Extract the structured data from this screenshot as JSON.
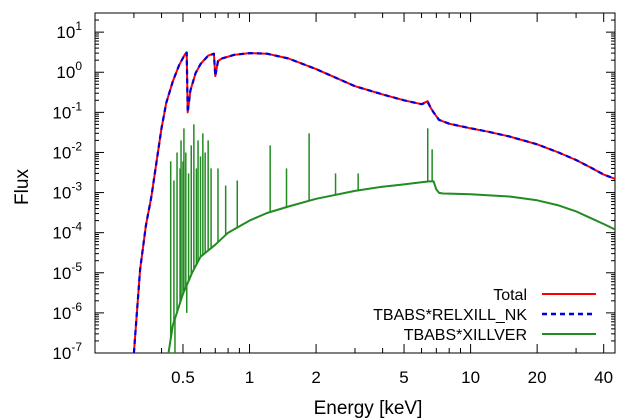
{
  "chart_data": {
    "type": "line",
    "xlabel": "Energy [keV]",
    "ylabel": "Flux",
    "xscale": "log",
    "yscale": "log",
    "xlim": [
      0.2,
      45
    ],
    "ylim": [
      1e-07,
      30
    ],
    "xticks": [
      {
        "value": 0.5,
        "label": "0.5"
      },
      {
        "value": 1,
        "label": "1"
      },
      {
        "value": 2,
        "label": "2"
      },
      {
        "value": 5,
        "label": "5"
      },
      {
        "value": 10,
        "label": "10"
      },
      {
        "value": 20,
        "label": "20"
      },
      {
        "value": 40,
        "label": "40"
      }
    ],
    "yticks": [
      {
        "value": 1e-07,
        "base": "10",
        "exp": "-7"
      },
      {
        "value": 1e-06,
        "base": "10",
        "exp": "-6"
      },
      {
        "value": 1e-05,
        "base": "10",
        "exp": "-5"
      },
      {
        "value": 0.0001,
        "base": "10",
        "exp": "-4"
      },
      {
        "value": 0.001,
        "base": "10",
        "exp": "-3"
      },
      {
        "value": 0.01,
        "base": "10",
        "exp": "-2"
      },
      {
        "value": 0.1,
        "base": "10",
        "exp": "-1"
      },
      {
        "value": 1,
        "base": "10",
        "exp": "0"
      },
      {
        "value": 10,
        "base": "10",
        "exp": "1"
      }
    ],
    "legend_position": "bottom-right",
    "series": [
      {
        "name": "Total",
        "color": "#ff0000",
        "dash": "solid",
        "x": [
          0.3,
          0.32,
          0.34,
          0.36,
          0.38,
          0.4,
          0.42,
          0.45,
          0.48,
          0.51,
          0.52,
          0.525,
          0.54,
          0.57,
          0.6,
          0.65,
          0.69,
          0.7,
          0.72,
          0.75,
          0.85,
          1.0,
          1.2,
          1.5,
          2.0,
          3.0,
          4.0,
          5.0,
          6.0,
          6.4,
          6.6,
          6.8,
          7.0,
          7.2,
          8.0,
          10.0,
          12.0,
          15.0,
          20.0,
          25.0,
          30.0,
          35.0,
          40.0,
          45.0
        ],
        "y": [
          1e-07,
          1.2e-05,
          0.00015,
          0.0008,
          0.006,
          0.04,
          0.17,
          0.6,
          1.5,
          2.8,
          3.1,
          0.1,
          0.35,
          0.95,
          1.6,
          2.6,
          2.9,
          0.8,
          1.9,
          2.2,
          2.7,
          3.0,
          2.9,
          2.2,
          1.2,
          0.45,
          0.28,
          0.2,
          0.16,
          0.19,
          0.13,
          0.1,
          0.08,
          0.065,
          0.052,
          0.04,
          0.033,
          0.025,
          0.016,
          0.01,
          0.0065,
          0.0042,
          0.0028,
          0.0022
        ]
      },
      {
        "name": "TBABS*RELXILL_NK",
        "color": "#0000dd",
        "dash": "dashed",
        "x": [
          0.3,
          0.32,
          0.34,
          0.36,
          0.38,
          0.4,
          0.42,
          0.45,
          0.48,
          0.51,
          0.52,
          0.525,
          0.54,
          0.57,
          0.6,
          0.65,
          0.69,
          0.7,
          0.72,
          0.75,
          0.85,
          1.0,
          1.2,
          1.5,
          2.0,
          3.0,
          4.0,
          5.0,
          6.0,
          6.4,
          6.6,
          6.8,
          7.0,
          7.2,
          8.0,
          10.0,
          12.0,
          15.0,
          20.0,
          25.0,
          30.0,
          35.0,
          40.0,
          45.0
        ],
        "y": [
          1e-07,
          1.2e-05,
          0.00015,
          0.0008,
          0.006,
          0.04,
          0.17,
          0.6,
          1.5,
          2.8,
          3.1,
          0.1,
          0.35,
          0.95,
          1.6,
          2.6,
          2.9,
          0.8,
          1.9,
          2.2,
          2.7,
          3.0,
          2.9,
          2.2,
          1.2,
          0.45,
          0.28,
          0.2,
          0.16,
          0.18,
          0.13,
          0.1,
          0.08,
          0.065,
          0.052,
          0.04,
          0.033,
          0.025,
          0.016,
          0.01,
          0.0065,
          0.0042,
          0.0028,
          0.0022
        ]
      },
      {
        "name": "TBABS*XILLVER",
        "color": "#228b22",
        "dash": "solid",
        "x": [
          0.43,
          0.45,
          0.5,
          0.55,
          0.6,
          0.7,
          0.8,
          1.0,
          1.2,
          1.5,
          2.0,
          3.0,
          4.0,
          5.0,
          6.0,
          6.5,
          6.8,
          7.0,
          7.2,
          7.5,
          8.0,
          10.0,
          15.0,
          20.0,
          25.0,
          30.0,
          35.0,
          40.0,
          45.0
        ],
        "y": [
          1e-07,
          5e-07,
          3e-06,
          1e-05,
          2.5e-05,
          5e-05,
          0.0001,
          0.0002,
          0.00031,
          0.00045,
          0.0007,
          0.0011,
          0.0014,
          0.0016,
          0.0018,
          0.0019,
          0.0019,
          0.0012,
          0.00098,
          0.00095,
          0.00094,
          0.00091,
          0.0008,
          0.00064,
          0.00048,
          0.00034,
          0.00023,
          0.000165,
          0.00012
        ]
      }
    ]
  }
}
